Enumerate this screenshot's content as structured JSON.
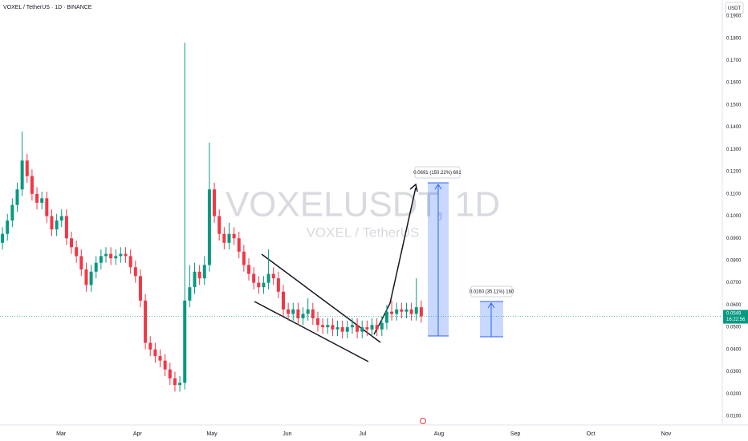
{
  "chart_data": {
    "type": "candlestick",
    "title": "VOXEL / TetherUS · 1D · BINANCE",
    "currency": "USDT",
    "watermark": "VOXELUSDT, 1D",
    "watermark_subtitle": "VOXEL / TetherUS",
    "up_color": "#089981",
    "down_color": "#f23645",
    "grid": false,
    "xlim": [
      -0.5,
      146.1
    ],
    "xticks": [
      {
        "value": 11.9,
        "label": "Mar"
      },
      {
        "value": 27.4,
        "label": "Apr"
      },
      {
        "value": 42.5,
        "label": "May"
      },
      {
        "value": 57.8,
        "label": "Jun"
      },
      {
        "value": 73.1,
        "label": "Jul"
      },
      {
        "value": 88.6,
        "label": "Aug"
      },
      {
        "value": 104.1,
        "label": "Sep"
      },
      {
        "value": 119.4,
        "label": "Oct"
      },
      {
        "value": 134.7,
        "label": "Nov"
      }
    ],
    "ylim": [
      0.01,
      0.19
    ],
    "yticks": [
      {
        "value": 0.01,
        "label": "0.0100"
      },
      {
        "value": 0.02,
        "label": "0.0200"
      },
      {
        "value": 0.03,
        "label": "0.0300"
      },
      {
        "value": 0.04,
        "label": "0.0400"
      },
      {
        "value": 0.05,
        "label": "0.0500"
      },
      {
        "value": 0.06,
        "label": "0.0600"
      },
      {
        "value": 0.07,
        "label": "0.0700"
      },
      {
        "value": 0.08,
        "label": "0.0800"
      },
      {
        "value": 0.09,
        "label": "0.0900"
      },
      {
        "value": 0.1,
        "label": "0.1000"
      },
      {
        "value": 0.11,
        "label": "0.1100"
      },
      {
        "value": 0.12,
        "label": "0.1200"
      },
      {
        "value": 0.13,
        "label": "0.1300"
      },
      {
        "value": 0.14,
        "label": "0.1400"
      },
      {
        "value": 0.15,
        "label": "0.1500"
      },
      {
        "value": 0.16,
        "label": "0.1600"
      },
      {
        "value": 0.17,
        "label": "0.1700"
      },
      {
        "value": 0.18,
        "label": "0.1800"
      },
      {
        "value": 0.19,
        "label": "0.1900"
      }
    ],
    "open": [
      0.088,
      0.092,
      0.098,
      0.105,
      0.112,
      0.125,
      0.118,
      0.11,
      0.106,
      0.108,
      0.1,
      0.094,
      0.098,
      0.1,
      0.09,
      0.086,
      0.082,
      0.076,
      0.069,
      0.075,
      0.079,
      0.082,
      0.083,
      0.081,
      0.082,
      0.083,
      0.082,
      0.077,
      0.073,
      0.062,
      0.043,
      0.04,
      0.037,
      0.035,
      0.031,
      0.027,
      0.024,
      0.025,
      0.062,
      0.068,
      0.075,
      0.072,
      0.078,
      0.112,
      0.1,
      0.092,
      0.088,
      0.092,
      0.09,
      0.084,
      0.078,
      0.074,
      0.07,
      0.068,
      0.07,
      0.074,
      0.072,
      0.066,
      0.058,
      0.056,
      0.058,
      0.054,
      0.056,
      0.058,
      0.054,
      0.051,
      0.05,
      0.051,
      0.049,
      0.05,
      0.048,
      0.05,
      0.051,
      0.048,
      0.05,
      0.049,
      0.051,
      0.049,
      0.052,
      0.057,
      0.056,
      0.058,
      0.057,
      0.058,
      0.056,
      0.059
    ],
    "high": [
      0.095,
      0.101,
      0.108,
      0.115,
      0.138,
      0.128,
      0.121,
      0.113,
      0.111,
      0.111,
      0.103,
      0.101,
      0.103,
      0.103,
      0.093,
      0.089,
      0.085,
      0.079,
      0.078,
      0.082,
      0.085,
      0.086,
      0.086,
      0.085,
      0.086,
      0.086,
      0.085,
      0.08,
      0.076,
      0.065,
      0.046,
      0.043,
      0.04,
      0.038,
      0.034,
      0.03,
      0.028,
      0.178,
      0.078,
      0.079,
      0.078,
      0.082,
      0.133,
      0.115,
      0.103,
      0.095,
      0.097,
      0.095,
      0.093,
      0.087,
      0.081,
      0.077,
      0.073,
      0.073,
      0.085,
      0.077,
      0.075,
      0.069,
      0.061,
      0.061,
      0.061,
      0.059,
      0.063,
      0.061,
      0.057,
      0.054,
      0.054,
      0.054,
      0.053,
      0.053,
      0.053,
      0.054,
      0.054,
      0.053,
      0.053,
      0.054,
      0.054,
      0.055,
      0.06,
      0.062,
      0.061,
      0.061,
      0.061,
      0.061,
      0.072,
      0.062
    ],
    "low": [
      0.085,
      0.089,
      0.095,
      0.102,
      0.109,
      0.115,
      0.107,
      0.103,
      0.103,
      0.097,
      0.091,
      0.091,
      0.095,
      0.087,
      0.083,
      0.079,
      0.073,
      0.066,
      0.066,
      0.072,
      0.076,
      0.079,
      0.078,
      0.078,
      0.079,
      0.079,
      0.074,
      0.07,
      0.059,
      0.04,
      0.037,
      0.034,
      0.032,
      0.028,
      0.024,
      0.021,
      0.021,
      0.022,
      0.059,
      0.065,
      0.069,
      0.069,
      0.075,
      0.097,
      0.089,
      0.085,
      0.085,
      0.087,
      0.081,
      0.075,
      0.071,
      0.067,
      0.065,
      0.065,
      0.067,
      0.069,
      0.063,
      0.055,
      0.053,
      0.053,
      0.051,
      0.051,
      0.053,
      0.051,
      0.048,
      0.047,
      0.047,
      0.046,
      0.046,
      0.045,
      0.045,
      0.047,
      0.045,
      0.045,
      0.046,
      0.046,
      0.046,
      0.046,
      0.049,
      0.053,
      0.053,
      0.054,
      0.054,
      0.053,
      0.053,
      0.052
    ],
    "close": [
      0.092,
      0.098,
      0.105,
      0.112,
      0.125,
      0.118,
      0.11,
      0.106,
      0.108,
      0.1,
      0.094,
      0.098,
      0.1,
      0.09,
      0.086,
      0.082,
      0.076,
      0.069,
      0.075,
      0.079,
      0.082,
      0.083,
      0.081,
      0.082,
      0.083,
      0.082,
      0.077,
      0.073,
      0.062,
      0.043,
      0.04,
      0.037,
      0.035,
      0.031,
      0.027,
      0.024,
      0.025,
      0.062,
      0.068,
      0.075,
      0.072,
      0.078,
      0.112,
      0.1,
      0.092,
      0.088,
      0.092,
      0.09,
      0.084,
      0.078,
      0.074,
      0.07,
      0.068,
      0.07,
      0.074,
      0.072,
      0.066,
      0.058,
      0.056,
      0.058,
      0.054,
      0.056,
      0.058,
      0.054,
      0.051,
      0.05,
      0.051,
      0.049,
      0.05,
      0.048,
      0.05,
      0.051,
      0.048,
      0.05,
      0.049,
      0.051,
      0.049,
      0.052,
      0.057,
      0.056,
      0.058,
      0.057,
      0.058,
      0.056,
      0.059,
      0.0549
    ],
    "last_price": 0.0549,
    "countdown": "16:22:56",
    "annotations": [
      "0.0691 (150.22%) 691",
      "0.0160 (35.11%) 160"
    ]
  }
}
